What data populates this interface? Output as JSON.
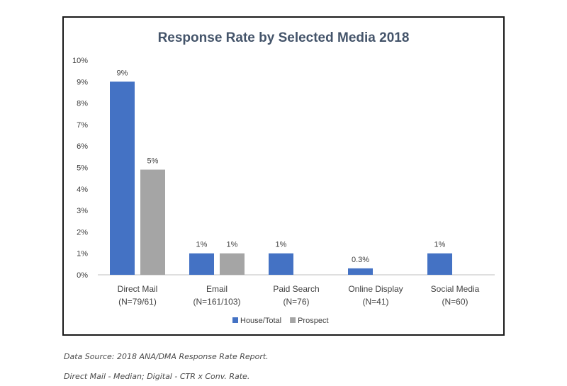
{
  "chart_data": {
    "type": "bar",
    "title": "Response Rate by Selected Media 2018",
    "categories": [
      [
        "Direct Mail",
        "(N=79/61)"
      ],
      [
        "Email",
        "(N=161/103)"
      ],
      [
        "Paid Search",
        "(N=76)"
      ],
      [
        "Online Display",
        "(N=41)"
      ],
      [
        "Social Media",
        "(N=60)"
      ]
    ],
    "series": [
      {
        "name": "House/Total",
        "color": "#4472c4",
        "values": [
          9,
          1,
          1,
          0.3,
          1
        ],
        "labels": [
          "9%",
          "1%",
          "1%",
          "0.3%",
          "1%"
        ]
      },
      {
        "name": "Prospect",
        "color": "#a5a5a5",
        "values": [
          4.9,
          1,
          null,
          null,
          null
        ],
        "labels": [
          "5%",
          "1%",
          null,
          null,
          null
        ]
      }
    ],
    "ylim": [
      0,
      10
    ],
    "ytick_step": 1,
    "ytick_labels": [
      "0%",
      "1%",
      "2%",
      "3%",
      "4%",
      "5%",
      "6%",
      "7%",
      "8%",
      "9%",
      "10%"
    ],
    "grid": false,
    "legend_position": "bottom"
  },
  "notes": [
    "Data Source: 2018 ANA/DMA Response Rate Report.",
    "Direct Mail - Median; Digital - CTR x Conv. Rate."
  ]
}
